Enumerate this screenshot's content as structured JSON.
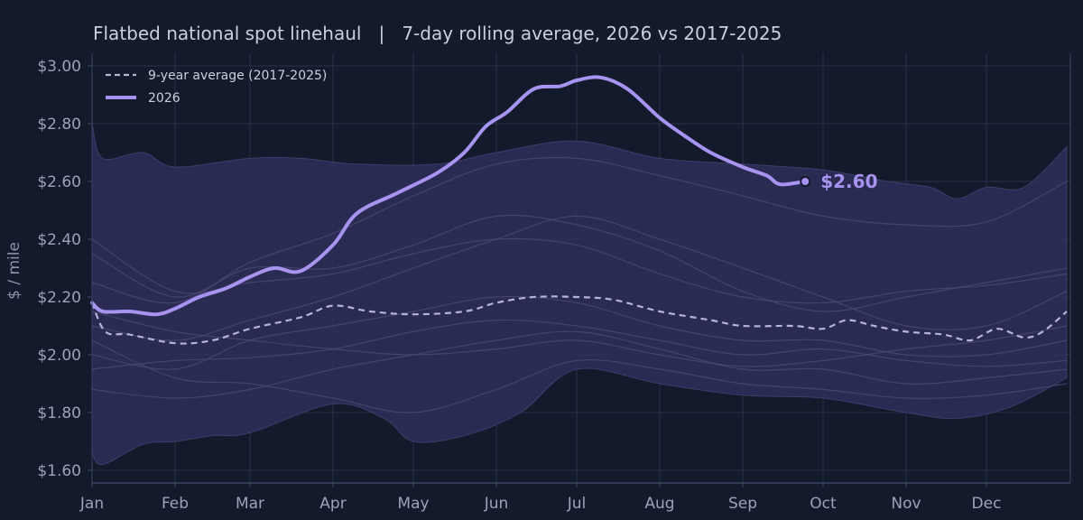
{
  "chart_data": {
    "type": "line",
    "title": "Flatbed national spot linehaul   |   7-day rolling average, 2026 vs 2017-2025",
    "xlabel": "",
    "ylabel": "$ / mile",
    "x_ticks": [
      "Jan",
      "Feb",
      "Mar",
      "Apr",
      "May",
      "Jun",
      "Jul",
      "Aug",
      "Sep",
      "Oct",
      "Nov",
      "Dec"
    ],
    "y_ticks": [
      "$1.60",
      "$1.80",
      "$2.00",
      "$2.20",
      "$2.40",
      "$2.60",
      "$2.80",
      "$3.00"
    ],
    "ylim": [
      1.55,
      3.05
    ],
    "xlim": [
      "Jan 1",
      "Dec 31"
    ],
    "grid": true,
    "legend_position": "top-left",
    "colors": {
      "background": "#131a2c",
      "band": "#2f2f5a",
      "history_lines": "#4a4a74",
      "average": "#b7b3d6",
      "current": "#a694f0",
      "grid": "#273149",
      "axis": "#3a4560"
    },
    "series": [
      {
        "name": "9-year average (2017-2025)",
        "style": "dashed",
        "points": [
          [
            "Jan 1",
            2.18
          ],
          [
            "Jan 6",
            2.08
          ],
          [
            "Jan 15",
            2.07
          ],
          [
            "Feb 1",
            2.04
          ],
          [
            "Feb 15",
            2.05
          ],
          [
            "Mar 1",
            2.09
          ],
          [
            "Mar 20",
            2.13
          ],
          [
            "Apr 1",
            2.17
          ],
          [
            "Apr 15",
            2.15
          ],
          [
            "May 1",
            2.14
          ],
          [
            "May 20",
            2.15
          ],
          [
            "Jun 1",
            2.18
          ],
          [
            "Jun 15",
            2.2
          ],
          [
            "Jul 1",
            2.2
          ],
          [
            "Jul 15",
            2.19
          ],
          [
            "Aug 1",
            2.15
          ],
          [
            "Aug 20",
            2.12
          ],
          [
            "Sep 1",
            2.1
          ],
          [
            "Sep 20",
            2.1
          ],
          [
            "Oct 1",
            2.09
          ],
          [
            "Oct 10",
            2.12
          ],
          [
            "Oct 20",
            2.1
          ],
          [
            "Nov 1",
            2.08
          ],
          [
            "Nov 15",
            2.07
          ],
          [
            "Nov 25",
            2.05
          ],
          [
            "Dec 5",
            2.09
          ],
          [
            "Dec 15",
            2.06
          ],
          [
            "Dec 22",
            2.08
          ],
          [
            "Dec 31",
            2.15
          ]
        ]
      },
      {
        "name": "2026",
        "style": "solid",
        "points": [
          [
            "Jan 1",
            2.18
          ],
          [
            "Jan 5",
            2.15
          ],
          [
            "Jan 15",
            2.15
          ],
          [
            "Jan 25",
            2.14
          ],
          [
            "Feb 1",
            2.16
          ],
          [
            "Feb 10",
            2.2
          ],
          [
            "Feb 20",
            2.23
          ],
          [
            "Mar 1",
            2.27
          ],
          [
            "Mar 10",
            2.3
          ],
          [
            "Mar 20",
            2.29
          ],
          [
            "Apr 1",
            2.38
          ],
          [
            "Apr 10",
            2.49
          ],
          [
            "Apr 25",
            2.56
          ],
          [
            "May 10",
            2.63
          ],
          [
            "May 20",
            2.7
          ],
          [
            "May 28",
            2.79
          ],
          [
            "Jun 5",
            2.84
          ],
          [
            "Jun 15",
            2.92
          ],
          [
            "Jun 25",
            2.93
          ],
          [
            "Jul 1",
            2.95
          ],
          [
            "Jul 10",
            2.96
          ],
          [
            "Jul 20",
            2.92
          ],
          [
            "Aug 1",
            2.82
          ],
          [
            "Aug 10",
            2.76
          ],
          [
            "Aug 20",
            2.7
          ],
          [
            "Sep 1",
            2.65
          ],
          [
            "Sep 10",
            2.62
          ],
          [
            "Sep 15",
            2.59
          ],
          [
            "Sep 24",
            2.6
          ]
        ]
      }
    ],
    "range_band": {
      "upper": [
        [
          "Jan 1",
          2.8
        ],
        [
          "Jan 5",
          2.68
        ],
        [
          "Jan 20",
          2.7
        ],
        [
          "Feb 1",
          2.65
        ],
        [
          "Mar 1",
          2.68
        ],
        [
          "Mar 20",
          2.68
        ],
        [
          "Apr 10",
          2.66
        ],
        [
          "May 10",
          2.66
        ],
        [
          "Jun 1",
          2.7
        ],
        [
          "Jul 1",
          2.74
        ],
        [
          "Aug 1",
          2.68
        ],
        [
          "Sep 1",
          2.66
        ],
        [
          "Oct 1",
          2.64
        ],
        [
          "Oct 25",
          2.6
        ],
        [
          "Nov 10",
          2.58
        ],
        [
          "Nov 20",
          2.54
        ],
        [
          "Dec 1",
          2.58
        ],
        [
          "Dec 15",
          2.58
        ],
        [
          "Dec 31",
          2.72
        ]
      ],
      "lower": [
        [
          "Jan 1",
          1.66
        ],
        [
          "Jan 5",
          1.62
        ],
        [
          "Jan 20",
          1.69
        ],
        [
          "Feb 1",
          1.7
        ],
        [
          "Feb 15",
          1.72
        ],
        [
          "Mar 1",
          1.73
        ],
        [
          "Apr 1",
          1.83
        ],
        [
          "Apr 20",
          1.78
        ],
        [
          "May 1",
          1.7
        ],
        [
          "May 20",
          1.72
        ],
        [
          "Jun 10",
          1.8
        ],
        [
          "Jul 1",
          1.95
        ],
        [
          "Aug 1",
          1.9
        ],
        [
          "Sep 1",
          1.86
        ],
        [
          "Oct 1",
          1.85
        ],
        [
          "Nov 1",
          1.8
        ],
        [
          "Nov 20",
          1.78
        ],
        [
          "Dec 10",
          1.82
        ],
        [
          "Dec 31",
          1.92
        ]
      ]
    },
    "history_series": [
      [
        [
          "Jan 1",
          2.25
        ],
        [
          "Feb 1",
          2.18
        ],
        [
          "Mar 1",
          2.32
        ],
        [
          "Apr 1",
          2.42
        ],
        [
          "May 1",
          2.55
        ],
        [
          "Jun 1",
          2.66
        ],
        [
          "Jul 1",
          2.68
        ],
        [
          "Aug 1",
          2.62
        ],
        [
          "Sep 1",
          2.55
        ],
        [
          "Oct 1",
          2.48
        ],
        [
          "Nov 1",
          2.45
        ],
        [
          "Dec 1",
          2.46
        ],
        [
          "Dec 31",
          2.6
        ]
      ],
      [
        [
          "Jan 1",
          2.35
        ],
        [
          "Feb 1",
          2.2
        ],
        [
          "Mar 1",
          2.3
        ],
        [
          "Apr 1",
          2.3
        ],
        [
          "May 1",
          2.38
        ],
        [
          "Jun 1",
          2.48
        ],
        [
          "Jul 1",
          2.45
        ],
        [
          "Aug 1",
          2.36
        ],
        [
          "Sep 1",
          2.22
        ],
        [
          "Oct 1",
          2.15
        ],
        [
          "Nov 1",
          2.2
        ],
        [
          "Dec 1",
          2.25
        ],
        [
          "Dec 31",
          2.3
        ]
      ],
      [
        [
          "Jan 1",
          2.1
        ],
        [
          "Feb 1",
          2.05
        ],
        [
          "Mar 1",
          2.12
        ],
        [
          "Apr 1",
          2.2
        ],
        [
          "May 1",
          2.3
        ],
        [
          "Jun 1",
          2.4
        ],
        [
          "Jul 1",
          2.48
        ],
        [
          "Aug 1",
          2.4
        ],
        [
          "Sep 1",
          2.3
        ],
        [
          "Oct 1",
          2.2
        ],
        [
          "Nov 1",
          2.1
        ],
        [
          "Dec 1",
          2.1
        ],
        [
          "Dec 31",
          2.22
        ]
      ],
      [
        [
          "Jan 1",
          2.0
        ],
        [
          "Feb 1",
          1.95
        ],
        [
          "Mar 1",
          2.05
        ],
        [
          "Apr 1",
          2.1
        ],
        [
          "May 1",
          2.15
        ],
        [
          "Jun 1",
          2.2
        ],
        [
          "Jul 1",
          2.18
        ],
        [
          "Aug 1",
          2.1
        ],
        [
          "Sep 1",
          2.05
        ],
        [
          "Oct 1",
          2.05
        ],
        [
          "Nov 1",
          2.0
        ],
        [
          "Dec 1",
          2.0
        ],
        [
          "Dec 31",
          2.05
        ]
      ],
      [
        [
          "Jan 1",
          1.95
        ],
        [
          "Feb 1",
          1.98
        ],
        [
          "Mar 1",
          1.99
        ],
        [
          "Apr 1",
          2.02
        ],
        [
          "May 1",
          2.08
        ],
        [
          "Jun 1",
          2.12
        ],
        [
          "Jul 1",
          2.1
        ],
        [
          "Aug 1",
          2.05
        ],
        [
          "Sep 1",
          2.0
        ],
        [
          "Oct 1",
          2.02
        ],
        [
          "Nov 1",
          1.98
        ],
        [
          "Dec 1",
          1.96
        ],
        [
          "Dec 31",
          1.98
        ]
      ],
      [
        [
          "Jan 1",
          1.88
        ],
        [
          "Feb 1",
          1.85
        ],
        [
          "Mar 1",
          1.88
        ],
        [
          "Apr 1",
          1.95
        ],
        [
          "May 1",
          2.0
        ],
        [
          "Jun 1",
          2.05
        ],
        [
          "Jul 1",
          2.08
        ],
        [
          "Aug 1",
          2.02
        ],
        [
          "Sep 1",
          1.95
        ],
        [
          "Oct 1",
          1.95
        ],
        [
          "Nov 1",
          1.9
        ],
        [
          "Dec 1",
          1.92
        ],
        [
          "Dec 31",
          1.95
        ]
      ],
      [
        [
          "Jan 1",
          2.05
        ],
        [
          "Feb 1",
          1.92
        ],
        [
          "Mar 1",
          1.9
        ],
        [
          "Apr 1",
          1.85
        ],
        [
          "May 1",
          1.8
        ],
        [
          "Jun 1",
          1.88
        ],
        [
          "Jul 1",
          1.98
        ],
        [
          "Aug 1",
          1.95
        ],
        [
          "Sep 1",
          1.9
        ],
        [
          "Oct 1",
          1.88
        ],
        [
          "Nov 1",
          1.85
        ],
        [
          "Dec 1",
          1.86
        ],
        [
          "Dec 31",
          1.9
        ]
      ],
      [
        [
          "Jan 1",
          2.15
        ],
        [
          "Feb 1",
          2.08
        ],
        [
          "Mar 1",
          2.05
        ],
        [
          "Apr 1",
          2.02
        ],
        [
          "May 1",
          2.0
        ],
        [
          "Jun 1",
          2.02
        ],
        [
          "Jul 1",
          2.05
        ],
        [
          "Aug 1",
          2.0
        ],
        [
          "Sep 1",
          1.96
        ],
        [
          "Oct 1",
          1.98
        ],
        [
          "Nov 1",
          2.02
        ],
        [
          "Dec 1",
          2.05
        ],
        [
          "Dec 31",
          2.1
        ]
      ],
      [
        [
          "Jan 1",
          2.4
        ],
        [
          "Feb 1",
          2.22
        ],
        [
          "Mar 1",
          2.25
        ],
        [
          "Apr 1",
          2.28
        ],
        [
          "May 1",
          2.35
        ],
        [
          "Jun 1",
          2.4
        ],
        [
          "Jul 1",
          2.38
        ],
        [
          "Aug 1",
          2.28
        ],
        [
          "Sep 1",
          2.2
        ],
        [
          "Oct 1",
          2.18
        ],
        [
          "Nov 1",
          2.22
        ],
        [
          "Dec 1",
          2.24
        ],
        [
          "Dec 31",
          2.28
        ]
      ]
    ],
    "end_label": "$2.60"
  }
}
